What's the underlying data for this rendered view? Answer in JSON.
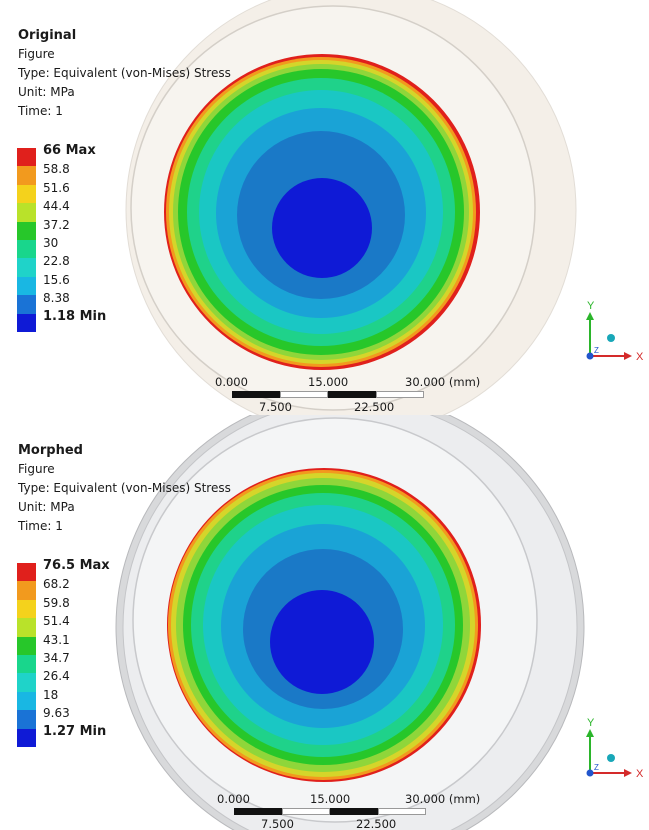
{
  "panels": [
    {
      "info": {
        "title": "Original",
        "object": "Figure",
        "type": "Type: Equivalent (von-Mises) Stress",
        "unit": "Unit: MPa",
        "time": "Time: 1"
      },
      "legend": {
        "labels": [
          "66 Max",
          "58.8",
          "51.6",
          "44.4",
          "37.2",
          "30",
          "22.8",
          "15.6",
          "8.38",
          "1.18 Min"
        ]
      },
      "scale": {
        "top_labels": [
          "0.000",
          "15.000",
          "30.000 (mm)"
        ],
        "bottom_labels": [
          "7.500",
          "22.500"
        ]
      },
      "triad": {
        "y_label": "Y",
        "x_label": "X",
        "z_label": "Z"
      }
    },
    {
      "info": {
        "title": "Morphed",
        "object": "Figure",
        "type": "Type: Equivalent (von-Mises) Stress",
        "unit": "Unit: MPa",
        "time": "Time: 1"
      },
      "legend": {
        "labels": [
          "76.5 Max",
          "68.2",
          "59.8",
          "51.4",
          "43.1",
          "34.7",
          "26.4",
          "18",
          "9.63",
          "1.27 Min"
        ]
      },
      "scale": {
        "top_labels": [
          "0.000",
          "15.000",
          "30.000 (mm)"
        ],
        "bottom_labels": [
          "7.500",
          "22.500"
        ]
      },
      "triad": {
        "y_label": "Y",
        "x_label": "X",
        "z_label": "Z"
      }
    }
  ],
  "colors": {
    "legend": [
      "#e0201c",
      "#f29a1e",
      "#f4d21c",
      "#b9e22a",
      "#27c72a",
      "#19d68c",
      "#1fd3c9",
      "#19b7e3",
      "#1a73d6",
      "#0f1ad6"
    ],
    "contour_outer_to_inner": [
      "#e0201c",
      "#f29a1e",
      "#d5d52a",
      "#8fd63a",
      "#27c72a",
      "#1fd28a",
      "#1ac7c4",
      "#1aa3d6",
      "#1a79c7",
      "#0f1ad6"
    ]
  }
}
